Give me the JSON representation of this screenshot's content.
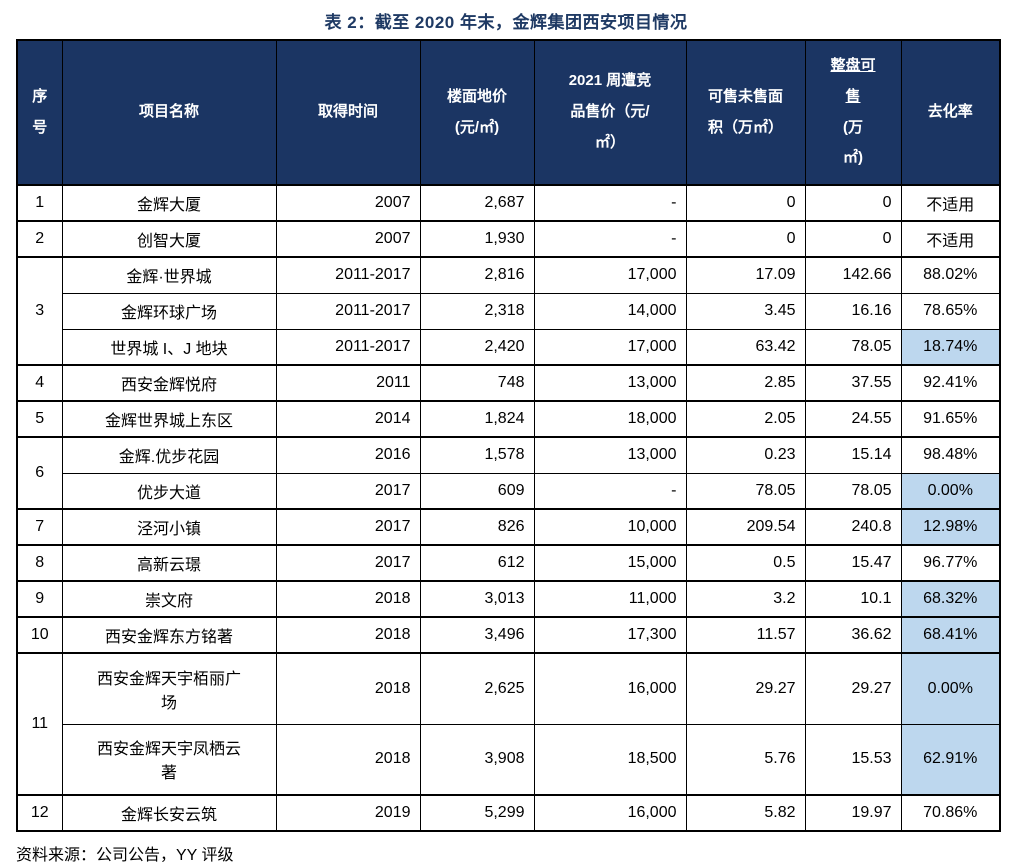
{
  "title": "表 2：截至 2020 年末，金辉集团西安项目情况",
  "source_note": "资料来源：公司公告，YY 评级",
  "colors": {
    "header_bg": "#1B3563",
    "header_text": "#FFFFFF",
    "title_text": "#1F3A64",
    "highlight_cell_bg": "#BDD7EE",
    "border": "#000000"
  },
  "table": {
    "columns": [
      {
        "key": "no",
        "label": "序\n号"
      },
      {
        "key": "name",
        "label": "项目名称"
      },
      {
        "key": "time",
        "label": "取得时间"
      },
      {
        "key": "floor_price",
        "label": "楼面地价\n(元/㎡)"
      },
      {
        "key": "comp_price",
        "label": "2021 周遭竞\n品售价（元/\n㎡）"
      },
      {
        "key": "unsold_area",
        "label": "可售未售面\n积（万㎡）"
      },
      {
        "key": "total_sellable",
        "label_underlined": "整盘可\n售",
        "label_rest": "(万\n㎡)"
      },
      {
        "key": "rate",
        "label": "去化率"
      }
    ],
    "groups": [
      {
        "no": "1",
        "rows": [
          {
            "name": "金辉大厦",
            "time": "2007",
            "floor_price": "2,687",
            "comp_price": "-",
            "unsold_area": "0",
            "total_sellable": "0",
            "rate": "不适用",
            "highlight": false,
            "tall": false
          }
        ]
      },
      {
        "no": "2",
        "rows": [
          {
            "name": "创智大厦",
            "time": "2007",
            "floor_price": "1,930",
            "comp_price": "-",
            "unsold_area": "0",
            "total_sellable": "0",
            "rate": "不适用",
            "highlight": false,
            "tall": false
          }
        ]
      },
      {
        "no": "3",
        "rows": [
          {
            "name": "金辉·世界城",
            "time": "2011-2017",
            "floor_price": "2,816",
            "comp_price": "17,000",
            "unsold_area": "17.09",
            "total_sellable": "142.66",
            "rate": "88.02%",
            "highlight": false,
            "tall": false
          },
          {
            "name": "金辉环球广场",
            "time": "2011-2017",
            "floor_price": "2,318",
            "comp_price": "14,000",
            "unsold_area": "3.45",
            "total_sellable": "16.16",
            "rate": "78.65%",
            "highlight": false,
            "tall": false
          },
          {
            "name": "世界城 I、J 地块",
            "time": "2011-2017",
            "floor_price": "2,420",
            "comp_price": "17,000",
            "unsold_area": "63.42",
            "total_sellable": "78.05",
            "rate": "18.74%",
            "highlight": true,
            "tall": false
          }
        ]
      },
      {
        "no": "4",
        "rows": [
          {
            "name": "西安金辉悦府",
            "time": "2011",
            "floor_price": "748",
            "comp_price": "13,000",
            "unsold_area": "2.85",
            "total_sellable": "37.55",
            "rate": "92.41%",
            "highlight": false,
            "tall": false
          }
        ]
      },
      {
        "no": "5",
        "rows": [
          {
            "name": "金辉世界城上东区",
            "time": "2014",
            "floor_price": "1,824",
            "comp_price": "18,000",
            "unsold_area": "2.05",
            "total_sellable": "24.55",
            "rate": "91.65%",
            "highlight": false,
            "tall": false
          }
        ]
      },
      {
        "no": "6",
        "rows": [
          {
            "name": "金辉.优步花园",
            "time": "2016",
            "floor_price": "1,578",
            "comp_price": "13,000",
            "unsold_area": "0.23",
            "total_sellable": "15.14",
            "rate": "98.48%",
            "highlight": false,
            "tall": false
          },
          {
            "name": "优步大道",
            "time": "2017",
            "floor_price": "609",
            "comp_price": "-",
            "unsold_area": "78.05",
            "total_sellable": "78.05",
            "rate": "0.00%",
            "highlight": true,
            "tall": false
          }
        ]
      },
      {
        "no": "7",
        "rows": [
          {
            "name": "泾河小镇",
            "time": "2017",
            "floor_price": "826",
            "comp_price": "10,000",
            "unsold_area": "209.54",
            "total_sellable": "240.8",
            "rate": "12.98%",
            "highlight": true,
            "tall": false
          }
        ]
      },
      {
        "no": "8",
        "rows": [
          {
            "name": "高新云璟",
            "time": "2017",
            "floor_price": "612",
            "comp_price": "15,000",
            "unsold_area": "0.5",
            "total_sellable": "15.47",
            "rate": "96.77%",
            "highlight": false,
            "tall": false
          }
        ]
      },
      {
        "no": "9",
        "rows": [
          {
            "name": "崇文府",
            "time": "2018",
            "floor_price": "3,013",
            "comp_price": "11,000",
            "unsold_area": "3.2",
            "total_sellable": "10.1",
            "rate": "68.32%",
            "highlight": true,
            "tall": false
          }
        ]
      },
      {
        "no": "10",
        "rows": [
          {
            "name": "西安金辉东方铭著",
            "time": "2018",
            "floor_price": "3,496",
            "comp_price": "17,300",
            "unsold_area": "11.57",
            "total_sellable": "36.62",
            "rate": "68.41%",
            "highlight": true,
            "tall": false
          }
        ]
      },
      {
        "no": "11",
        "rows": [
          {
            "name": "西安金辉天宇栢丽广\n场",
            "time": "2018",
            "floor_price": "2,625",
            "comp_price": "16,000",
            "unsold_area": "29.27",
            "total_sellable": "29.27",
            "rate": "0.00%",
            "highlight": true,
            "tall": true
          },
          {
            "name": "西安金辉天宇凤栖云\n著",
            "time": "2018",
            "floor_price": "3,908",
            "comp_price": "18,500",
            "unsold_area": "5.76",
            "total_sellable": "15.53",
            "rate": "62.91%",
            "highlight": true,
            "tall": true
          }
        ]
      },
      {
        "no": "12",
        "rows": [
          {
            "name": "金辉长安云筑",
            "time": "2019",
            "floor_price": "5,299",
            "comp_price": "16,000",
            "unsold_area": "5.82",
            "total_sellable": "19.97",
            "rate": "70.86%",
            "highlight": false,
            "tall": false
          }
        ]
      }
    ]
  }
}
